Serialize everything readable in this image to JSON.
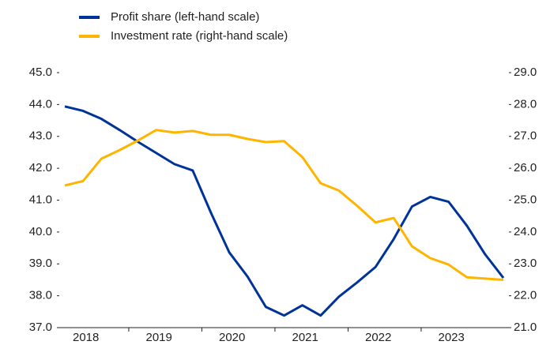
{
  "chart_data": {
    "type": "line",
    "categories": [
      "2018",
      null,
      null,
      null,
      "2019",
      null,
      null,
      null,
      "2020",
      null,
      null,
      null,
      "2021",
      null,
      null,
      null,
      "2022",
      null,
      null,
      null,
      "2023",
      null,
      null,
      null,
      null
    ],
    "series": [
      {
        "name": "Profit share (left-hand scale)",
        "color": "#003399",
        "axis": "y",
        "values": [
          43.94,
          43.8,
          43.55,
          43.2,
          42.83,
          42.48,
          42.13,
          41.93,
          40.6,
          39.36,
          38.6,
          37.65,
          37.38,
          37.7,
          37.38,
          37.97,
          38.42,
          38.9,
          39.78,
          40.8,
          41.1,
          40.95,
          40.2,
          39.3,
          38.56
        ]
      },
      {
        "name": "Investment rate (right-hand scale)",
        "color": "#ffb400",
        "axis": "y2",
        "values": [
          25.46,
          25.6,
          26.3,
          26.57,
          26.87,
          27.2,
          27.12,
          27.17,
          27.05,
          27.05,
          26.92,
          26.82,
          26.85,
          26.35,
          25.53,
          25.3,
          24.82,
          24.3,
          24.44,
          23.55,
          23.18,
          22.98,
          22.58,
          22.54,
          22.5
        ]
      }
    ],
    "ylim": [
      37,
      45
    ],
    "yticks": [
      {
        "value": 37,
        "label": "37.0"
      },
      {
        "value": 38,
        "label": "38.0"
      },
      {
        "value": 39,
        "label": "39.0"
      },
      {
        "value": 40,
        "label": "40.0"
      },
      {
        "value": 41,
        "label": "41.0"
      },
      {
        "value": 42,
        "label": "42.0"
      },
      {
        "value": 43,
        "label": "43.0"
      },
      {
        "value": 44,
        "label": "44.0"
      },
      {
        "value": 45,
        "label": "45.0"
      }
    ],
    "y2lim": [
      21,
      29
    ],
    "y2ticks": [
      {
        "value": 21,
        "label": "21.0"
      },
      {
        "value": 22,
        "label": "22.0"
      },
      {
        "value": 23,
        "label": "23.0"
      },
      {
        "value": 24,
        "label": "24.0"
      },
      {
        "value": 25,
        "label": "25.0"
      },
      {
        "value": 26,
        "label": "26.0"
      },
      {
        "value": 27,
        "label": "27.0"
      },
      {
        "value": 28,
        "label": "28.0"
      },
      {
        "value": 29,
        "label": "29.0"
      }
    ],
    "legend": "top-left"
  }
}
